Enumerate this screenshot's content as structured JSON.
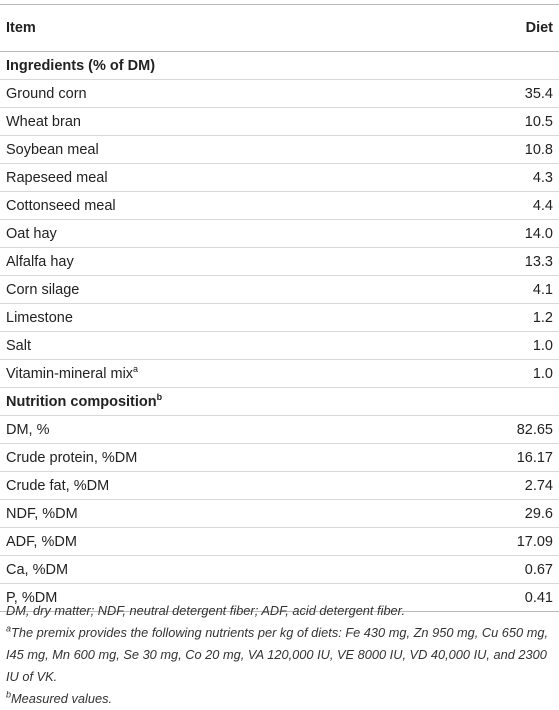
{
  "header": {
    "item": "Item",
    "diet": "Diet"
  },
  "sections": [
    {
      "title": "Ingredients (% of DM)",
      "rows": [
        {
          "item": "Ground corn",
          "value": "35.4"
        },
        {
          "item": "Wheat bran",
          "value": "10.5"
        },
        {
          "item": "Soybean meal",
          "value": "10.8"
        },
        {
          "item": "Rapeseed meal",
          "value": "4.3"
        },
        {
          "item": "Cottonseed meal",
          "value": "4.4"
        },
        {
          "item": "Oat hay",
          "value": "14.0"
        },
        {
          "item": "Alfalfa hay",
          "value": "13.3"
        },
        {
          "item": "Corn silage",
          "value": "4.1"
        },
        {
          "item": "Limestone",
          "value": "1.2"
        },
        {
          "item": "Salt",
          "value": "1.0"
        },
        {
          "item": "Vitamin-mineral mix",
          "sup": "a",
          "value": "1.0"
        }
      ]
    },
    {
      "title": "Nutrition composition",
      "sup": "b",
      "rows": [
        {
          "item": "DM, %",
          "value": "82.65"
        },
        {
          "item": "Crude protein, %DM",
          "value": "16.17"
        },
        {
          "item": "Crude fat, %DM",
          "value": "2.74"
        },
        {
          "item": "NDF, %DM",
          "value": "29.6"
        },
        {
          "item": "ADF, %DM",
          "value": "17.09"
        },
        {
          "item": "Ca, %DM",
          "value": "0.67"
        },
        {
          "item": "P, %DM",
          "value": "0.41"
        }
      ]
    }
  ],
  "footnotes": {
    "abbreviations": "DM, dry matter; NDF, neutral detergent fiber; ADF, acid detergent fiber.",
    "notes": [
      {
        "mark": "a",
        "text": "The premix provides the following nutrients per kg of diets: Fe 430 mg, Zn 950 mg, Cu 650 mg, I45 mg, Mn 600 mg, Se 30 mg, Co 20 mg, VA 120,000 IU, VE 8000 IU, VD 40,000 IU, and 2300 IU of VK."
      },
      {
        "mark": "b",
        "text": "Measured values."
      }
    ]
  }
}
